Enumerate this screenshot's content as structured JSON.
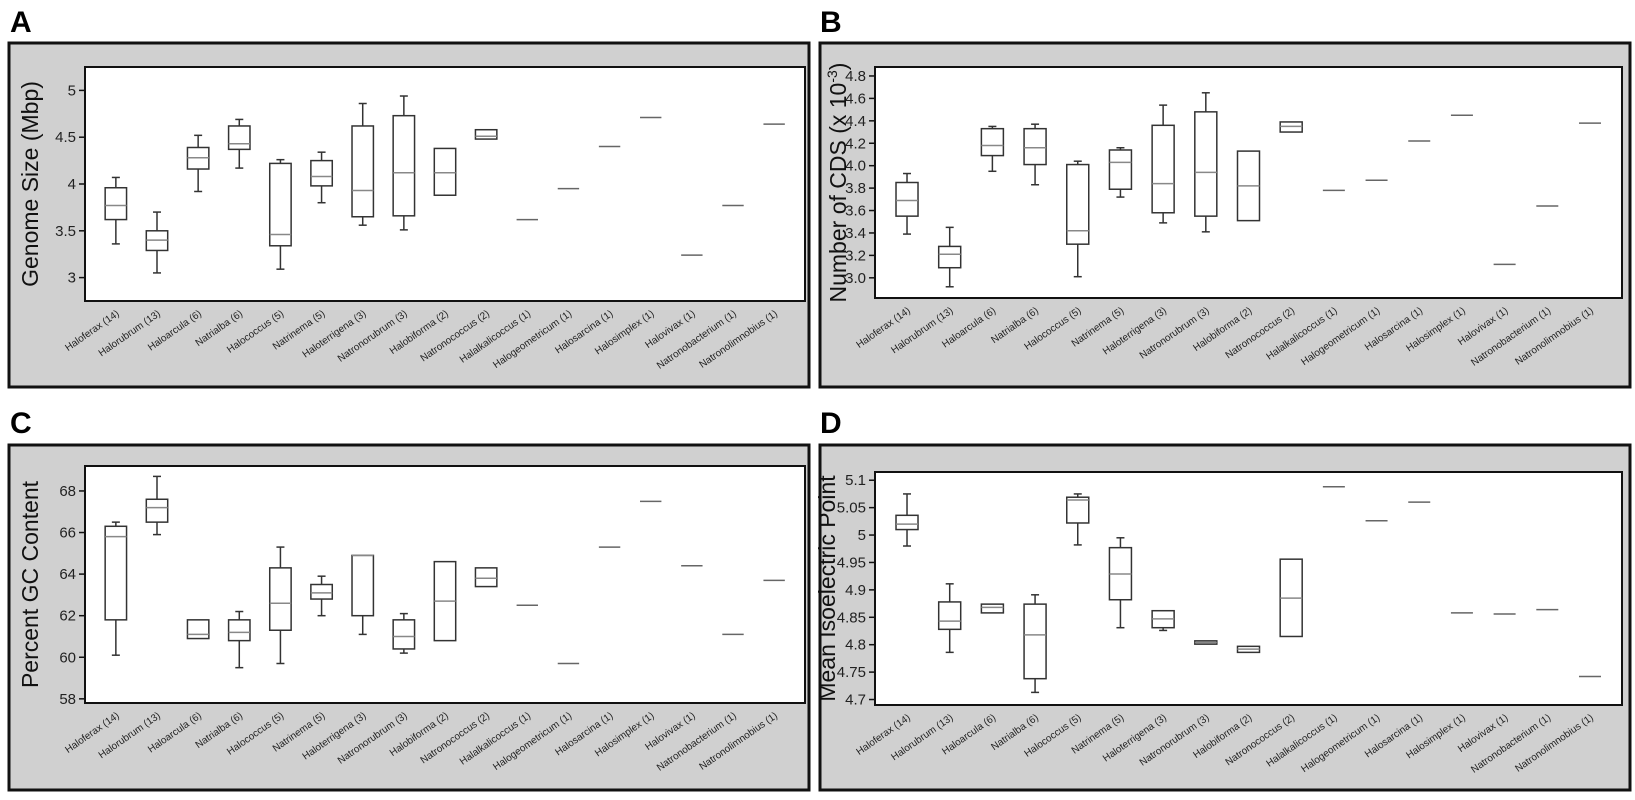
{
  "categories": [
    "Haloferax (14)",
    "Halorubrum (13)",
    "Haloarcula (6)",
    "Natrialba (6)",
    "Halococcus (5)",
    "Natrinema (5)",
    "Haloterrigena (3)",
    "Natronorubrum (3)",
    "Halobiforma (2)",
    "Natronococcus (2)",
    "Halalkalicoccus (1)",
    "Halogeometricum (1)",
    "Halosarcina (1)",
    "Halosimplex (1)",
    "Halovivax (1)",
    "Natronobacterium (1)",
    "Natronolimnobius (1)"
  ],
  "colors": {
    "box": "#333333",
    "median": "#888888",
    "single": "#666666",
    "panel_bg": "#d0d0d0",
    "plot_bg": "#ffffff"
  },
  "chart_data": [
    {
      "panel": "A",
      "type": "box",
      "ylabel": "Genome Size (Mbp)",
      "ylim": [
        2.75,
        5.25
      ],
      "yticks": [
        3,
        3.5,
        4,
        4.5,
        5
      ],
      "ytick_labels": [
        "3",
        "3.5",
        "4",
        "4.5",
        "5"
      ],
      "boxes": [
        {
          "min": 3.36,
          "q1": 3.62,
          "median": 3.77,
          "q3": 3.96,
          "max": 4.07
        },
        {
          "min": 3.05,
          "q1": 3.29,
          "median": 3.4,
          "q3": 3.5,
          "max": 3.7
        },
        {
          "min": 3.92,
          "q1": 4.16,
          "median": 4.28,
          "q3": 4.39,
          "max": 4.52
        },
        {
          "min": 4.17,
          "q1": 4.37,
          "median": 4.43,
          "q3": 4.62,
          "max": 4.69
        },
        {
          "min": 3.09,
          "q1": 3.34,
          "median": 3.46,
          "q3": 4.22,
          "max": 4.26
        },
        {
          "min": 3.8,
          "q1": 3.98,
          "median": 4.08,
          "q3": 4.25,
          "max": 4.34
        },
        {
          "min": 3.56,
          "q1": 3.65,
          "median": 3.93,
          "q3": 4.62,
          "max": 4.86
        },
        {
          "min": 3.51,
          "q1": 3.66,
          "median": 4.12,
          "q3": 4.73,
          "max": 4.94
        },
        {
          "min": 3.88,
          "q1": 3.88,
          "median": 4.12,
          "q3": 4.38,
          "max": 4.38
        },
        {
          "min": 4.48,
          "q1": 4.48,
          "median": 4.51,
          "q3": 4.58,
          "max": 4.58
        },
        {
          "value": 3.62
        },
        {
          "value": 3.95
        },
        {
          "value": 4.4
        },
        {
          "value": 4.71
        },
        {
          "value": 3.24
        },
        {
          "value": 3.77
        },
        {
          "value": 4.64
        }
      ]
    },
    {
      "panel": "B",
      "type": "box",
      "ylabel_main": "Number of CDS (x 10",
      "ylabel_sup": "-3",
      "ylabel_end": ")",
      "ylim": [
        2.82,
        4.88
      ],
      "yticks": [
        3.0,
        3.2,
        3.4,
        3.6,
        3.8,
        4.0,
        4.2,
        4.4,
        4.6,
        4.8
      ],
      "ytick_labels": [
        "3.0",
        "3.2",
        "3.4",
        "3.6",
        "3.8",
        "4.0",
        "4.2",
        "4.4",
        "4.6",
        "4.8"
      ],
      "boxes": [
        {
          "min": 3.39,
          "q1": 3.55,
          "median": 3.69,
          "q3": 3.85,
          "max": 3.93
        },
        {
          "min": 2.92,
          "q1": 3.09,
          "median": 3.21,
          "q3": 3.28,
          "max": 3.45
        },
        {
          "min": 3.95,
          "q1": 4.09,
          "median": 4.18,
          "q3": 4.33,
          "max": 4.35
        },
        {
          "min": 3.83,
          "q1": 4.01,
          "median": 4.16,
          "q3": 4.33,
          "max": 4.37
        },
        {
          "min": 3.01,
          "q1": 3.3,
          "median": 3.42,
          "q3": 4.01,
          "max": 4.04
        },
        {
          "min": 3.72,
          "q1": 3.79,
          "median": 4.03,
          "q3": 4.14,
          "max": 4.16
        },
        {
          "min": 3.49,
          "q1": 3.58,
          "median": 3.84,
          "q3": 4.36,
          "max": 4.54
        },
        {
          "min": 3.41,
          "q1": 3.55,
          "median": 3.94,
          "q3": 4.48,
          "max": 4.65
        },
        {
          "min": 3.51,
          "q1": 3.51,
          "median": 3.82,
          "q3": 4.13,
          "max": 4.13
        },
        {
          "min": 4.3,
          "q1": 4.3,
          "median": 4.35,
          "q3": 4.39,
          "max": 4.39
        },
        {
          "value": 3.78
        },
        {
          "value": 3.87
        },
        {
          "value": 4.22
        },
        {
          "value": 4.45
        },
        {
          "value": 3.12
        },
        {
          "value": 3.64
        },
        {
          "value": 4.38
        }
      ]
    },
    {
      "panel": "C",
      "type": "box",
      "ylabel": "Percent GC Content",
      "ylim": [
        57.8,
        69.2
      ],
      "yticks": [
        58,
        60,
        62,
        64,
        66,
        68
      ],
      "ytick_labels": [
        "58",
        "60",
        "62",
        "64",
        "66",
        "68"
      ],
      "boxes": [
        {
          "min": 60.1,
          "q1": 61.8,
          "median": 65.8,
          "q3": 66.3,
          "max": 66.5
        },
        {
          "min": 65.9,
          "q1": 66.5,
          "median": 67.2,
          "q3": 67.6,
          "max": 68.7
        },
        {
          "min": 60.9,
          "q1": 60.9,
          "median": 61.1,
          "q3": 61.8,
          "max": 61.8
        },
        {
          "min": 59.5,
          "q1": 60.8,
          "median": 61.2,
          "q3": 61.8,
          "max": 62.2
        },
        {
          "min": 59.7,
          "q1": 61.3,
          "median": 62.6,
          "q3": 64.3,
          "max": 65.3
        },
        {
          "min": 62.0,
          "q1": 62.8,
          "median": 63.1,
          "q3": 63.5,
          "max": 63.9
        },
        {
          "min": 61.1,
          "q1": 62.0,
          "median": 64.9,
          "q3": 64.9,
          "max": 64.9
        },
        {
          "min": 60.2,
          "q1": 60.4,
          "median": 61.0,
          "q3": 61.8,
          "max": 62.1
        },
        {
          "min": 60.8,
          "q1": 60.8,
          "median": 62.7,
          "q3": 64.6,
          "max": 64.6
        },
        {
          "min": 63.4,
          "q1": 63.4,
          "median": 63.8,
          "q3": 64.3,
          "max": 64.3
        },
        {
          "value": 62.5
        },
        {
          "value": 59.7
        },
        {
          "value": 65.3
        },
        {
          "value": 67.5
        },
        {
          "value": 64.4
        },
        {
          "value": 61.1
        },
        {
          "value": 63.7
        }
      ]
    },
    {
      "panel": "D",
      "type": "box",
      "ylabel": "Mean Isoelectric Point",
      "ylim": [
        4.69,
        5.115
      ],
      "yticks": [
        4.7,
        4.75,
        4.8,
        4.85,
        4.9,
        4.95,
        5.0,
        5.05,
        5.1
      ],
      "ytick_labels": [
        "4.7",
        "4.75",
        "4.8",
        "4.85",
        "4.9",
        "4.95",
        "5",
        "5.05",
        "5.1"
      ],
      "boxes": [
        {
          "min": 4.98,
          "q1": 5.01,
          "median": 5.02,
          "q3": 5.036,
          "max": 5.075
        },
        {
          "min": 4.786,
          "q1": 4.828,
          "median": 4.843,
          "q3": 4.878,
          "max": 4.911
        },
        {
          "min": 4.858,
          "q1": 4.858,
          "median": 4.868,
          "q3": 4.874,
          "max": 4.874
        },
        {
          "min": 4.713,
          "q1": 4.738,
          "median": 4.818,
          "q3": 4.874,
          "max": 4.891
        },
        {
          "min": 4.982,
          "q1": 5.022,
          "median": 5.064,
          "q3": 5.069,
          "max": 5.075
        },
        {
          "min": 4.831,
          "q1": 4.882,
          "median": 4.929,
          "q3": 4.977,
          "max": 4.995
        },
        {
          "min": 4.826,
          "q1": 4.831,
          "median": 4.847,
          "q3": 4.862,
          "max": 4.862
        },
        {
          "min": 4.801,
          "q1": 4.801,
          "median": 4.804,
          "q3": 4.807,
          "max": 4.807
        },
        {
          "min": 4.786,
          "q1": 4.786,
          "median": 4.792,
          "q3": 4.797,
          "max": 4.797
        },
        {
          "min": 4.815,
          "q1": 4.815,
          "median": 4.885,
          "q3": 4.956,
          "max": 4.956
        },
        {
          "value": 5.088
        },
        {
          "value": 5.026
        },
        {
          "value": 5.06
        },
        {
          "value": 4.858
        },
        {
          "value": 4.856
        },
        {
          "value": 4.864
        },
        {
          "value": 4.742
        }
      ]
    }
  ]
}
